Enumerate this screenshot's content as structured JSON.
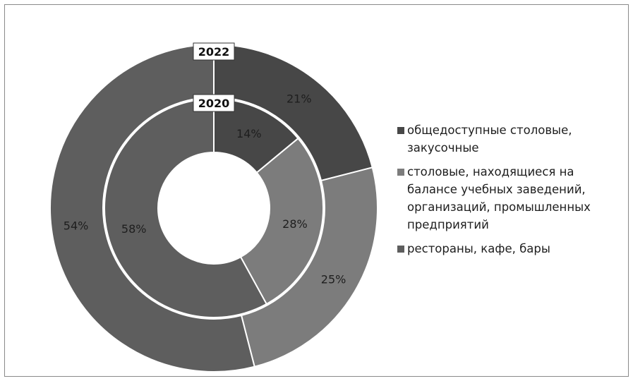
{
  "chart_data": {
    "type": "pie",
    "subtype": "donut",
    "rings": [
      {
        "name": "2022",
        "position": "outer",
        "values": [
          21,
          25,
          54
        ],
        "labels": [
          "21%",
          "25%",
          "54%"
        ]
      },
      {
        "name": "2020",
        "position": "inner",
        "values": [
          14,
          28,
          58
        ],
        "labels": [
          "14%",
          "28%",
          "58%"
        ]
      }
    ],
    "categories": [
      "общедоступные столовые, закусочные",
      "столовые, находящиеся на балансе учебных заведений, организаций, промышленных предприятий",
      "рестораны, кафе, бары"
    ],
    "colors": [
      "#474747",
      "#7c7c7c",
      "#5e5e5e"
    ],
    "legend_position": "right"
  },
  "legend": {
    "items": [
      {
        "label": "общедоступные столовые, закусочные",
        "color": "#474747"
      },
      {
        "label": "столовые, находящиеся на балансе учебных заведений, организаций, промышленных предприятий",
        "color": "#7c7c7c"
      },
      {
        "label": "рестораны, кафе, бары",
        "color": "#5e5e5e"
      }
    ]
  },
  "ring_labels": {
    "outer": "2022",
    "inner": "2020"
  }
}
